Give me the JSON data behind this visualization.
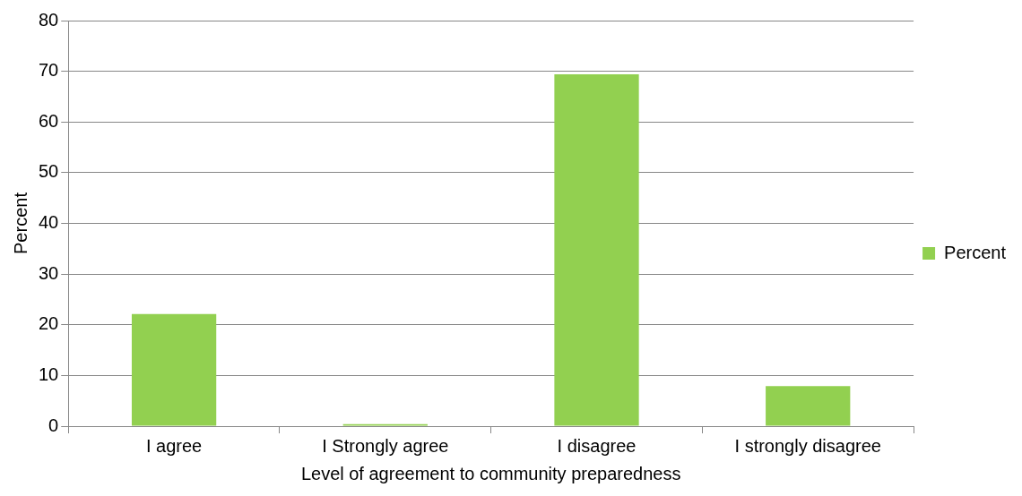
{
  "chart_data": {
    "type": "bar",
    "xlabel": "Level of agreement to community preparedness",
    "ylabel": "Percent",
    "categories": [
      "I agree",
      "I Strongly agree",
      "I disagree",
      "I strongly disagree"
    ],
    "series": [
      {
        "name": "Percent",
        "color": "#92d050",
        "values": [
          22.1,
          0.4,
          69.4,
          7.9
        ]
      }
    ],
    "ylim": [
      0,
      80
    ],
    "yticks": [
      0,
      10,
      20,
      30,
      40,
      50,
      60,
      70,
      80
    ],
    "grid": "y",
    "legend": "right"
  }
}
